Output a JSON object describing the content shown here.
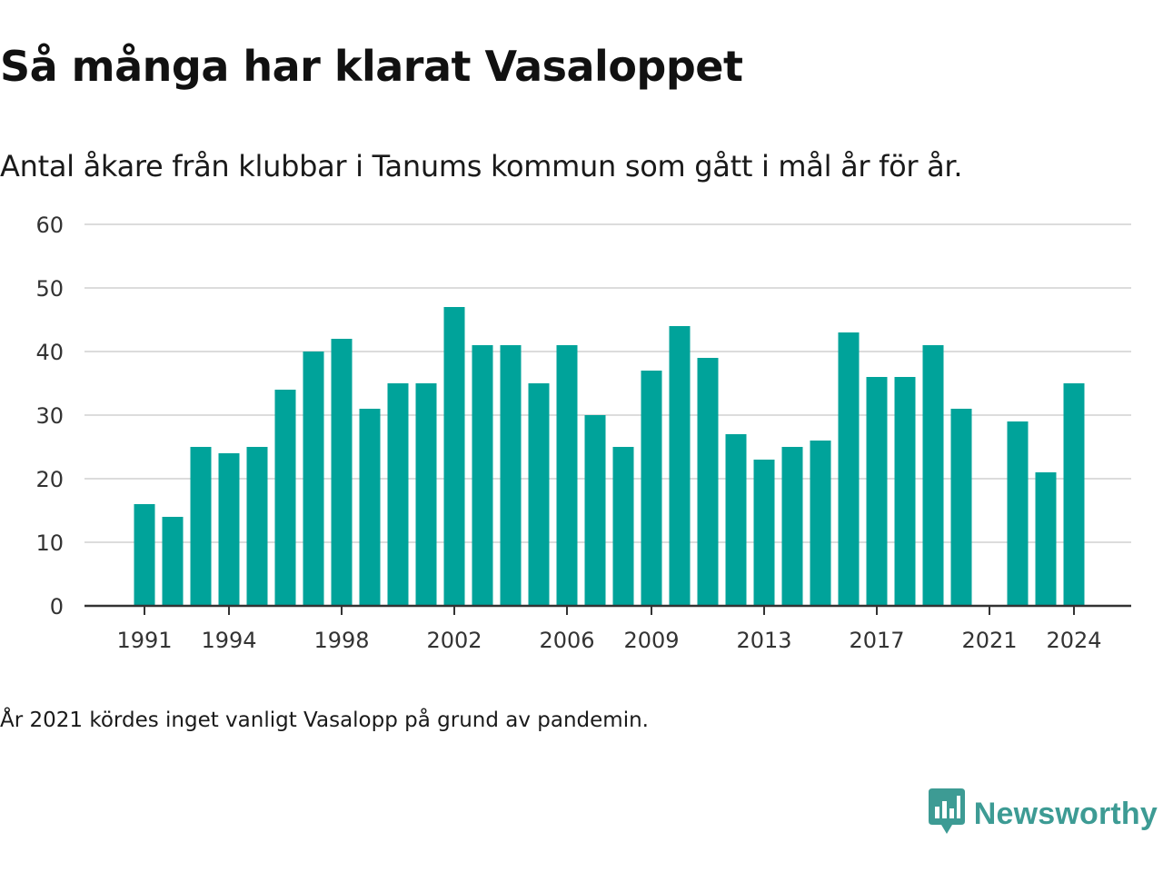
{
  "title": "Så många har klarat Vasaloppet",
  "subtitle": "Antal åkare från klubbar i Tanums kommun som gått i mål år för år.",
  "footnote": "År 2021 kördes inget vanligt Vasalopp på grund av pandemin.",
  "brand": {
    "name": "Newsworthy",
    "icon": "newsworthy-logo-icon",
    "color": "#3d9b94"
  },
  "colors": {
    "bar": "#00a39a",
    "grid": "#dcdcdc",
    "axis": "#333333"
  },
  "chart_data": {
    "type": "bar",
    "categories": [
      1991,
      1992,
      1993,
      1994,
      1995,
      1996,
      1997,
      1998,
      1999,
      2000,
      2001,
      2002,
      2003,
      2004,
      2005,
      2006,
      2007,
      2008,
      2009,
      2010,
      2011,
      2012,
      2013,
      2014,
      2015,
      2016,
      2017,
      2018,
      2019,
      2020,
      2021,
      2022,
      2023,
      2024
    ],
    "values": [
      16,
      14,
      25,
      24,
      25,
      34,
      40,
      42,
      31,
      35,
      35,
      47,
      41,
      41,
      35,
      41,
      30,
      25,
      37,
      44,
      39,
      27,
      23,
      25,
      26,
      43,
      36,
      36,
      41,
      31,
      null,
      29,
      21,
      35
    ],
    "xticks": [
      1991,
      1994,
      1998,
      2002,
      2006,
      2009,
      2013,
      2017,
      2021,
      2024
    ],
    "yticks": [
      0,
      10,
      20,
      30,
      40,
      50,
      60
    ],
    "ylim": [
      0,
      60
    ],
    "xlabel": "",
    "ylabel": "",
    "grid": true,
    "legend": "none"
  }
}
